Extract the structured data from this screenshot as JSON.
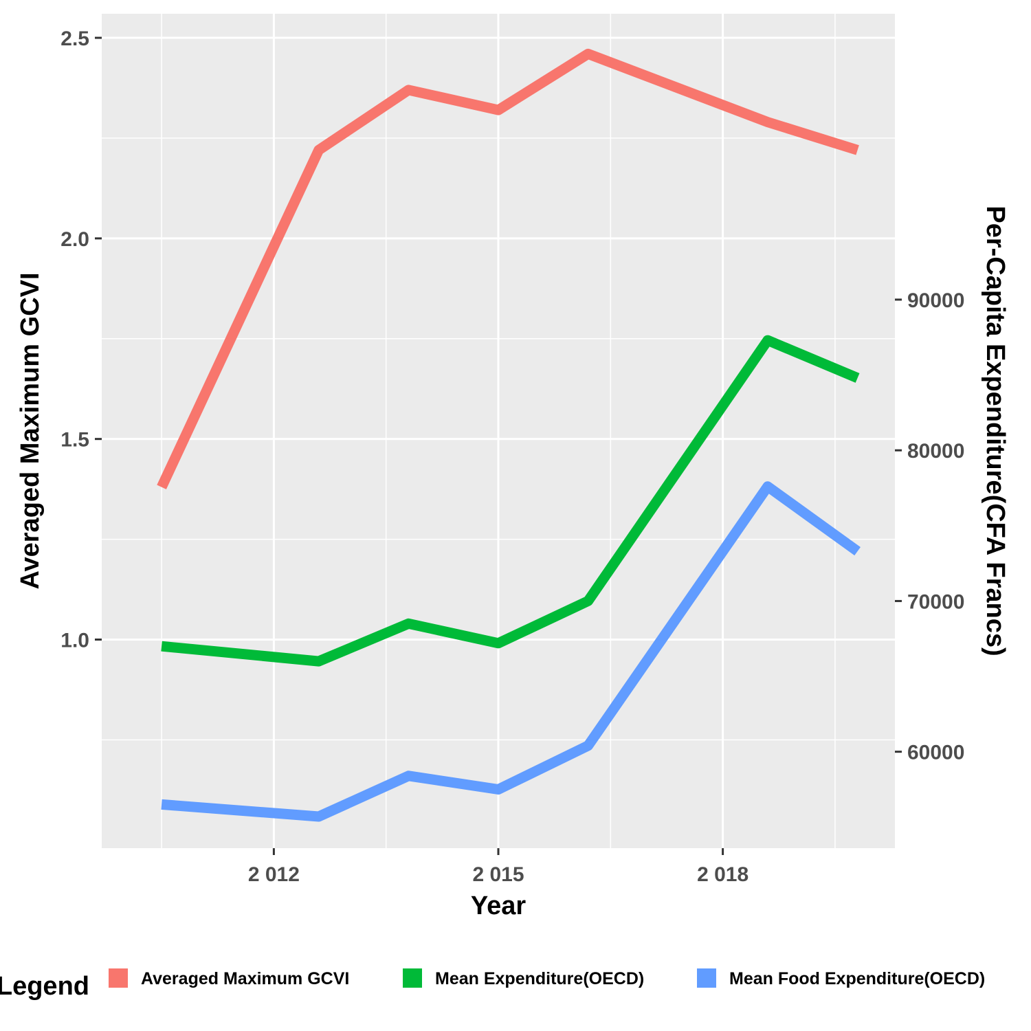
{
  "chart_data": {
    "type": "line",
    "xlabel": "Year",
    "ylabel_left": "Averaged Maximum GCVI",
    "ylabel_right": "Per-Capita Expenditure(CFA Francs)",
    "xlim": [
      2009.7,
      2020.3
    ],
    "ylim_left": [
      0.48,
      2.56
    ],
    "ylim_right": [
      53600,
      108970
    ],
    "x_ticks": [
      {
        "value": 2012,
        "label": "2 012"
      },
      {
        "value": 2015,
        "label": "2 015"
      },
      {
        "value": 2018,
        "label": "2 018"
      }
    ],
    "y_left_ticks": [
      {
        "value": 1.0,
        "label": "1.0"
      },
      {
        "value": 1.5,
        "label": "1.5"
      },
      {
        "value": 2.0,
        "label": "2.0"
      },
      {
        "value": 2.5,
        "label": "2.5"
      }
    ],
    "y_right_ticks": [
      {
        "value": 60000,
        "label": "60000"
      },
      {
        "value": 70000,
        "label": "70000"
      },
      {
        "value": 80000,
        "label": "80000"
      },
      {
        "value": 90000,
        "label": "90000"
      }
    ],
    "x": [
      2010.5,
      2012.6,
      2013.8,
      2015.0,
      2016.2,
      2018.6,
      2019.8
    ],
    "series": [
      {
        "name": "Averaged Maximum GCVI",
        "axis": "left",
        "color": "#F8766D",
        "values": [
          1.38,
          2.22,
          2.37,
          2.32,
          2.46,
          2.29,
          2.22
        ]
      },
      {
        "name": "Mean Expenditure(OECD)",
        "axis": "right",
        "color": "#00BA38",
        "values": [
          67000,
          66000,
          68500,
          67200,
          70000,
          87300,
          84800
        ]
      },
      {
        "name": "Mean Food Expenditure(OECD)",
        "axis": "right",
        "color": "#619CFF",
        "values": [
          56500,
          55700,
          58400,
          57500,
          60400,
          77600,
          73300
        ]
      }
    ],
    "legend_title": "Legend",
    "legend_position": "bottom",
    "grid": true
  }
}
